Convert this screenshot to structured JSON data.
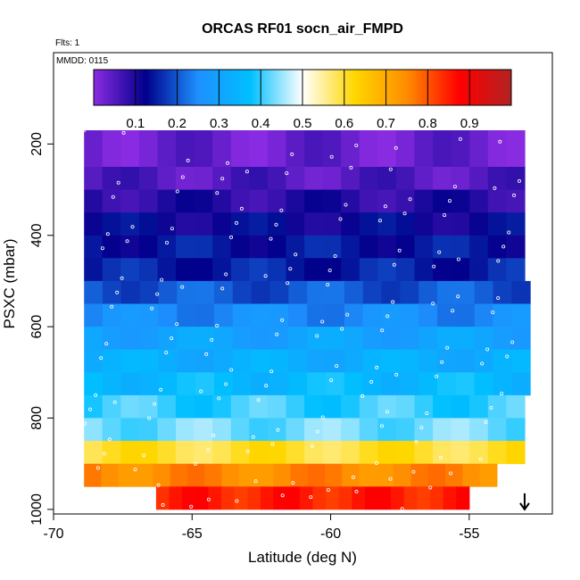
{
  "chart_data": {
    "type": "heatmap",
    "title": "ORCAS RF01 socn_air_FMPD",
    "annotations": {
      "flights": "Flts: 1",
      "date": "MMDD: 0115"
    },
    "xlabel": "Latitude (deg N)",
    "ylabel": "PSXC (mbar)",
    "xlim": [
      -70,
      -52
    ],
    "ylim": [
      1010,
      0
    ],
    "x_ticks": [
      -70,
      -65,
      -60,
      -55
    ],
    "x_tick_labels": [
      "-70",
      "-65",
      "-60",
      "-55"
    ],
    "y_ticks": [
      200,
      400,
      600,
      800,
      1000
    ],
    "y_tick_labels": [
      "200",
      "400",
      "600",
      "800",
      "1000"
    ],
    "colorbar": {
      "range": [
        0,
        1
      ],
      "ticks": [
        0.1,
        0.2,
        0.3,
        0.4,
        0.5,
        0.6,
        0.7,
        0.8,
        0.9
      ],
      "tick_labels": [
        "0.1",
        "0.2",
        "0.3",
        "0.4",
        "0.5",
        "0.6",
        "0.7",
        "0.8",
        "0.9"
      ],
      "colors": [
        "#8a2be2",
        "#00008b",
        "#1e90ff",
        "#00bfff",
        "#ffffff",
        "#ffd700",
        "#ff8c00",
        "#ff0000",
        "#b22222"
      ]
    },
    "pressure_bands": [
      {
        "p_top": 170,
        "p_bottom": 250,
        "lat_start": -68.9,
        "lat_end": -53.0,
        "value": 0.03
      },
      {
        "p_top": 250,
        "p_bottom": 300,
        "lat_start": -68.9,
        "lat_end": -53.0,
        "value": 0.05
      },
      {
        "p_top": 300,
        "p_bottom": 350,
        "lat_start": -68.9,
        "lat_end": -53.0,
        "value": 0.09
      },
      {
        "p_top": 350,
        "p_bottom": 400,
        "lat_start": -68.9,
        "lat_end": -53.0,
        "value": 0.12
      },
      {
        "p_top": 400,
        "p_bottom": 450,
        "lat_start": -68.9,
        "lat_end": -53.0,
        "value": 0.14
      },
      {
        "p_top": 450,
        "p_bottom": 500,
        "lat_start": -68.9,
        "lat_end": -53.0,
        "value": 0.15
      },
      {
        "p_top": 500,
        "p_bottom": 550,
        "lat_start": -68.9,
        "lat_end": -52.8,
        "value": 0.2
      },
      {
        "p_top": 550,
        "p_bottom": 600,
        "lat_start": -68.9,
        "lat_end": -52.8,
        "value": 0.25
      },
      {
        "p_top": 600,
        "p_bottom": 650,
        "lat_start": -68.9,
        "lat_end": -52.8,
        "value": 0.3
      },
      {
        "p_top": 650,
        "p_bottom": 700,
        "lat_start": -68.9,
        "lat_end": -52.8,
        "value": 0.33
      },
      {
        "p_top": 700,
        "p_bottom": 750,
        "lat_start": -68.9,
        "lat_end": -52.8,
        "value": 0.36
      },
      {
        "p_top": 750,
        "p_bottom": 800,
        "lat_start": -68.9,
        "lat_end": -53.0,
        "value": 0.4
      },
      {
        "p_top": 800,
        "p_bottom": 850,
        "lat_start": -68.9,
        "lat_end": -53.0,
        "value": 0.43
      },
      {
        "p_top": 850,
        "p_bottom": 900,
        "lat_start": -68.9,
        "lat_end": -53.0,
        "value": 0.6
      },
      {
        "p_top": 900,
        "p_bottom": 950,
        "lat_start": -68.9,
        "lat_end": -54.0,
        "value": 0.75
      },
      {
        "p_top": 950,
        "p_bottom": 1000,
        "lat_start": -66.3,
        "lat_end": -55.0,
        "value": 0.85
      }
    ],
    "marker": {
      "type": "arrow-down",
      "lat": -53.0,
      "p": 1000
    }
  }
}
